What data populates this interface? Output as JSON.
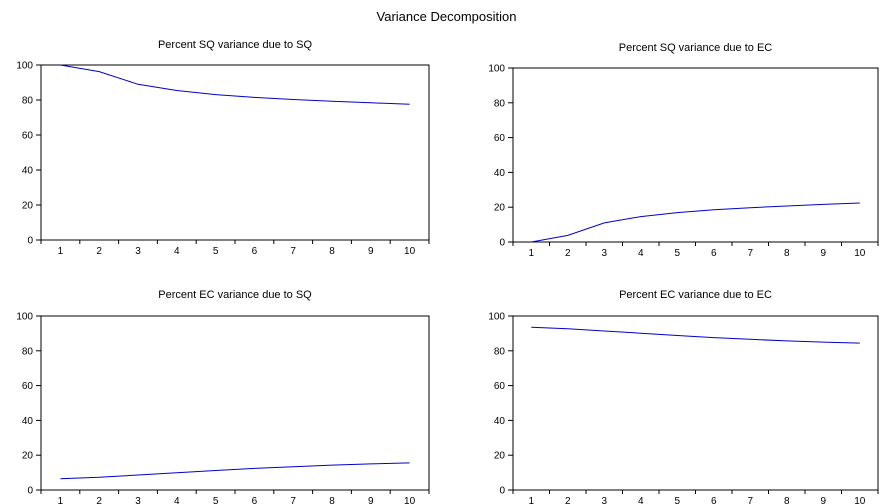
{
  "figure_title": "Variance Decomposition",
  "chart_data": [
    {
      "type": "line",
      "title": "Percent SQ variance due to SQ",
      "x": [
        1,
        2,
        3,
        4,
        5,
        6,
        7,
        8,
        9,
        10
      ],
      "series": [
        {
          "values": [
            100,
            96.2,
            89.0,
            85.4,
            83.1,
            81.5,
            80.3,
            79.3,
            78.4,
            77.6
          ]
        }
      ],
      "ylim": [
        0,
        100
      ],
      "yticks": [
        0,
        20,
        40,
        60,
        80,
        100
      ],
      "color": "#0000cc"
    },
    {
      "type": "line",
      "title": "Percent SQ variance due to EC",
      "x": [
        1,
        2,
        3,
        4,
        5,
        6,
        7,
        8,
        9,
        10
      ],
      "series": [
        {
          "values": [
            0,
            3.8,
            11.0,
            14.6,
            16.9,
            18.5,
            19.7,
            20.7,
            21.6,
            22.4
          ]
        }
      ],
      "ylim": [
        0,
        100
      ],
      "yticks": [
        0,
        20,
        40,
        60,
        80,
        100
      ],
      "color": "#0000cc"
    },
    {
      "type": "line",
      "title": "Percent EC variance due to SQ",
      "x": [
        1,
        2,
        3,
        4,
        5,
        6,
        7,
        8,
        9,
        10
      ],
      "series": [
        {
          "values": [
            6.5,
            7.3,
            8.6,
            9.9,
            11.2,
            12.4,
            13.4,
            14.3,
            15.0,
            15.6
          ]
        }
      ],
      "ylim": [
        0,
        100
      ],
      "yticks": [
        0,
        20,
        40,
        60,
        80,
        100
      ],
      "color": "#0000cc"
    },
    {
      "type": "line",
      "title": "Percent EC variance due to EC",
      "x": [
        1,
        2,
        3,
        4,
        5,
        6,
        7,
        8,
        9,
        10
      ],
      "series": [
        {
          "values": [
            93.5,
            92.7,
            91.4,
            90.1,
            88.8,
            87.6,
            86.6,
            85.7,
            85.0,
            84.4
          ]
        }
      ],
      "ylim": [
        0,
        100
      ],
      "yticks": [
        0,
        20,
        40,
        60,
        80,
        100
      ],
      "color": "#0000cc"
    }
  ]
}
